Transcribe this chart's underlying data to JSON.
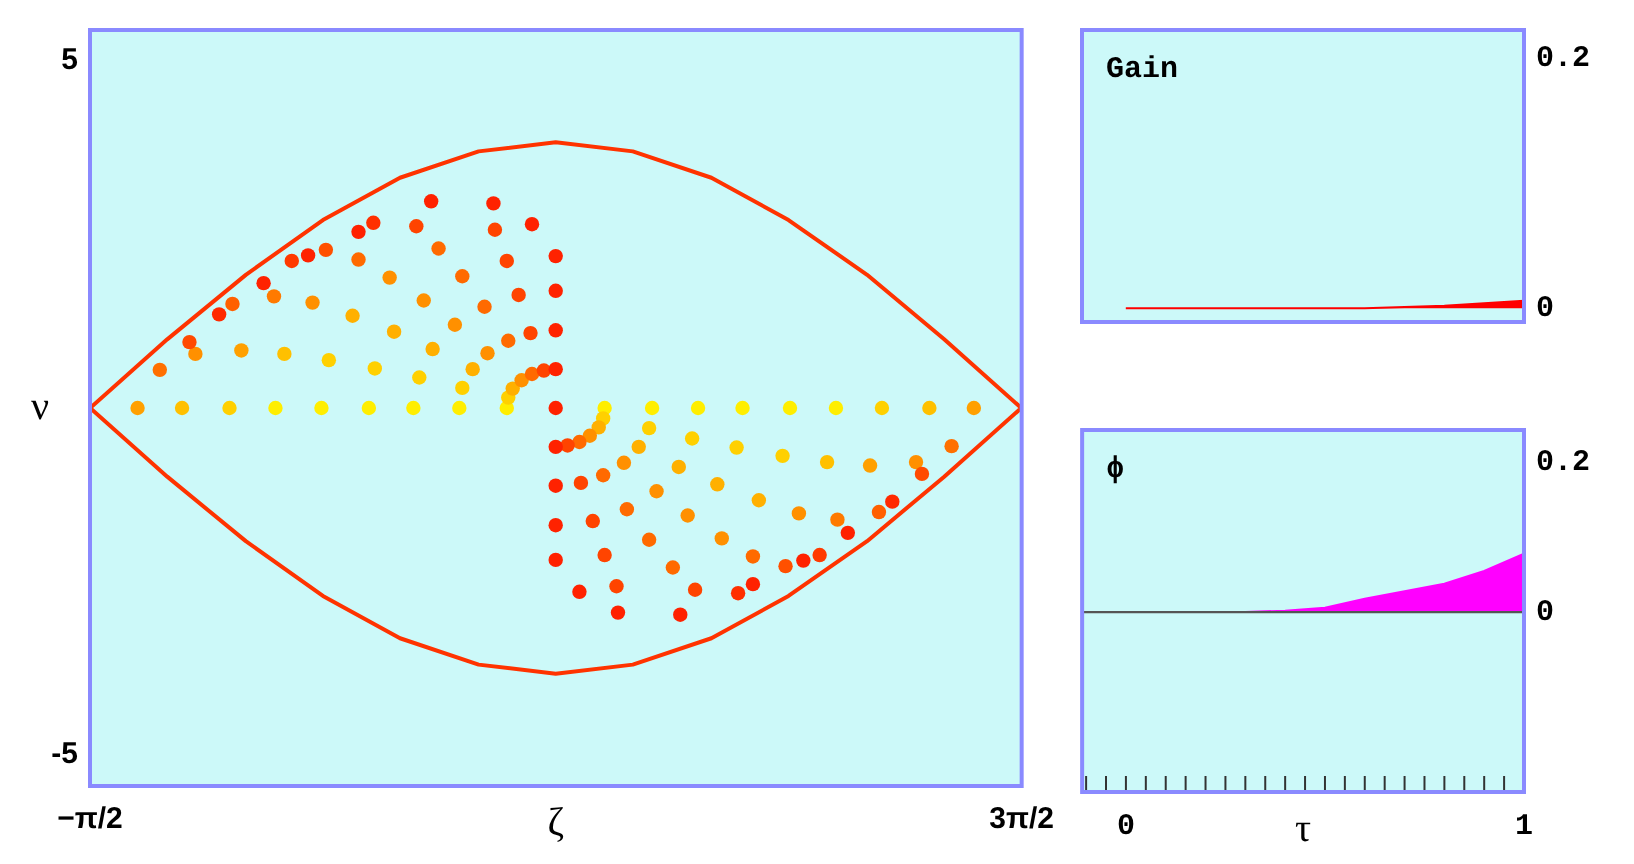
{
  "chart_data": [
    {
      "type": "scatter",
      "xlabel": "ζ",
      "ylabel": "ν",
      "xlim": [
        -1.5708,
        4.7124
      ],
      "xticks": [
        {
          "value": -1.5708,
          "label": "−π/2"
        },
        {
          "value": 4.7124,
          "label": "3π/2"
        }
      ],
      "ylim": [
        -5.45,
        5.45
      ],
      "yticks": [
        -5,
        5
      ],
      "series": [
        {
          "type": "line",
          "marker": "none",
          "color": "#ff3300",
          "x": [
            -1.57,
            -1.05,
            -0.52,
            0,
            0.52,
            1.05,
            1.57,
            2.09,
            2.62,
            3.14,
            3.67,
            4.19,
            4.71,
            null,
            -1.57,
            -1.05,
            -0.52,
            0,
            0.52,
            1.05,
            1.57,
            2.09,
            2.62,
            3.14,
            3.67,
            4.19,
            4.71
          ],
          "values": [
            0,
            0.99,
            1.92,
            2.71,
            3.32,
            3.7,
            3.83,
            3.7,
            3.32,
            2.71,
            1.92,
            0.99,
            0,
            null,
            0,
            -0.99,
            -1.92,
            -2.71,
            -3.32,
            -3.7,
            -3.83,
            -3.7,
            -3.32,
            -2.71,
            -1.92,
            -0.99,
            0
          ]
        },
        {
          "marker": "circle",
          "x": [
            1.24,
            1.25,
            1.28,
            1.34,
            1.41,
            1.49,
            1.57,
            0.92,
            0.94,
            1.01,
            1.11,
            1.25,
            1.4,
            1.57,
            0.61,
            0.65,
            0.74,
            0.89,
            1.09,
            1.32,
            1.57,
            0.31,
            0.35,
            0.48,
            0.68,
            0.94,
            1.24,
            1.57,
            -0.01,
            0.04,
            0.2,
            0.45,
            0.78,
            1.16,
            1.41,
            -0.32,
            -0.26,
            -0.07,
            0.24,
            0.63,
            1.15,
            -0.63,
            -0.55,
            -0.33,
            0.02,
            0.34,
            0.73,
            -0.95,
            -0.86,
            -0.61,
            -0.21,
            0.24,
            -1.25,
            -1.1,
            -0.9,
            -0.7,
            -0.4,
            -0.1,
            1.57
          ],
          "values": [
            0,
            0.15,
            0.28,
            0.4,
            0.49,
            0.54,
            0.56,
            0,
            0.29,
            0.56,
            0.79,
            0.97,
            1.08,
            1.12,
            0,
            0.44,
            0.85,
            1.2,
            1.46,
            1.63,
            1.69,
            0,
            0.57,
            1.1,
            1.55,
            1.9,
            2.12,
            2.19,
            0,
            0.69,
            1.33,
            1.88,
            2.3,
            2.57,
            2.65,
            0,
            0.78,
            1.52,
            2.14,
            2.62,
            2.95,
            0,
            0.83,
            1.61,
            2.28,
            2.67,
            2.98,
            0,
            0.78,
            1.5,
            2.12,
            2.54,
            0,
            0.55,
            0.95,
            1.35,
            1.8,
            2.2,
            0
          ],
          "colors": [
            "#ffee00",
            "#ffd000",
            "#ffb000",
            "#ff9000",
            "#ff6a00",
            "#ff4400",
            "#ff2200",
            "#ffee00",
            "#ffd000",
            "#ffb000",
            "#ff9000",
            "#ff6a00",
            "#ff4400",
            "#ff2200",
            "#ffee00",
            "#ffd000",
            "#ffb000",
            "#ff9000",
            "#ff6a00",
            "#ff4400",
            "#ff2200",
            "#ffee00",
            "#ffd000",
            "#ffb000",
            "#ff9000",
            "#ff6a00",
            "#ff4400",
            "#ff2200",
            "#ffee00",
            "#ffd000",
            "#ffb000",
            "#ff9000",
            "#ff6a00",
            "#ff4400",
            "#ff2200",
            "#ffee00",
            "#ffc000",
            "#ff9000",
            "#ff6a00",
            "#ff4400",
            "#ff2200",
            "#ffd000",
            "#ffa000",
            "#ff7a00",
            "#ff5000",
            "#ff3000",
            "#ff2200",
            "#ffc000",
            "#ff9000",
            "#ff6000",
            "#ff3a00",
            "#ff2200",
            "#ffa000",
            "#ff7000",
            "#ff4a00",
            "#ff2a00",
            "#ff2200",
            "#ff2200",
            "#ff2200"
          ]
        },
        {
          "marker": "circle",
          "x": [
            1.9,
            1.89,
            1.86,
            1.8,
            1.73,
            1.65,
            1.57,
            2.22,
            2.2,
            2.13,
            2.03,
            1.89,
            1.74,
            1.57,
            2.53,
            2.49,
            2.4,
            2.25,
            2.05,
            1.82,
            1.57,
            2.83,
            2.79,
            2.66,
            2.46,
            2.2,
            1.9,
            1.57,
            3.15,
            3.1,
            2.94,
            2.69,
            2.36,
            1.98,
            1.73,
            3.46,
            3.4,
            3.21,
            2.9,
            2.51,
            1.99,
            3.77,
            3.69,
            3.47,
            3.12,
            2.8,
            2.41,
            4.09,
            4.0,
            3.75,
            3.35,
            2.9,
            4.39,
            4.24,
            4.04,
            3.84,
            3.54,
            3.24
          ],
          "values": [
            0,
            -0.15,
            -0.28,
            -0.4,
            -0.49,
            -0.54,
            -0.56,
            0,
            -0.29,
            -0.56,
            -0.79,
            -0.97,
            -1.08,
            -1.12,
            0,
            -0.44,
            -0.85,
            -1.2,
            -1.46,
            -1.63,
            -1.69,
            0,
            -0.57,
            -1.1,
            -1.55,
            -1.9,
            -2.12,
            -2.19,
            0,
            -0.69,
            -1.33,
            -1.88,
            -2.3,
            -2.57,
            -2.65,
            0,
            -0.78,
            -1.52,
            -2.14,
            -2.62,
            -2.95,
            0,
            -0.83,
            -1.61,
            -2.28,
            -2.67,
            -2.98,
            0,
            -0.78,
            -1.5,
            -2.12,
            -2.54,
            0,
            -0.55,
            -0.95,
            -1.35,
            -1.8,
            -2.2
          ],
          "colors": [
            "#ffee00",
            "#ffd000",
            "#ffb000",
            "#ff9000",
            "#ff6a00",
            "#ff4400",
            "#ff2200",
            "#ffee00",
            "#ffd000",
            "#ffb000",
            "#ff9000",
            "#ff6a00",
            "#ff4400",
            "#ff2200",
            "#ffee00",
            "#ffd000",
            "#ffb000",
            "#ff9000",
            "#ff6a00",
            "#ff4400",
            "#ff2200",
            "#ffee00",
            "#ffd000",
            "#ffb000",
            "#ff9000",
            "#ff6a00",
            "#ff4400",
            "#ff2200",
            "#ffee00",
            "#ffd000",
            "#ffb000",
            "#ff9000",
            "#ff6a00",
            "#ff4400",
            "#ff2200",
            "#ffee00",
            "#ffc000",
            "#ff9000",
            "#ff6a00",
            "#ff4400",
            "#ff2200",
            "#ffd000",
            "#ffa000",
            "#ff7a00",
            "#ff5000",
            "#ff3000",
            "#ff2200",
            "#ffc000",
            "#ff9000",
            "#ff6000",
            "#ff3a00",
            "#ff2200",
            "#ffa000",
            "#ff7000",
            "#ff4a00",
            "#ff2a00",
            "#ff2200",
            "#ff2200"
          ]
        }
      ]
    },
    {
      "type": "area",
      "title": "Gain",
      "x": [
        0,
        0.5,
        0.6,
        0.7,
        0.8,
        0.9,
        1
      ],
      "values": [
        0,
        0,
        0,
        0.001,
        0.002,
        0.004,
        0.006
      ],
      "color": "#ff0000",
      "xlim": [
        -0.11,
        1
      ],
      "ylim": [
        -0.011,
        0.223
      ],
      "yticks": [
        0,
        0.2
      ],
      "tick_labels": "y"
    },
    {
      "type": "area",
      "title": "ϕ",
      "xlabel": "τ",
      "x": [
        0,
        0.3,
        0.4,
        0.5,
        0.6,
        0.7,
        0.8,
        0.9,
        1
      ],
      "values": [
        0,
        0,
        0.002,
        0.006,
        0.018,
        0.028,
        0.038,
        0.055,
        0.078
      ],
      "color": "#ff00ff",
      "xlim": [
        -0.11,
        1
      ],
      "xticks": [
        {
          "value": -0.1,
          "label": null
        },
        {
          "value": -0.05,
          "label": null
        },
        0,
        {
          "value": 0.05,
          "label": null
        },
        {
          "value": 0.1,
          "label": null
        },
        {
          "value": 0.15,
          "label": null
        },
        {
          "value": 0.2,
          "label": null
        },
        {
          "value": 0.25,
          "label": null
        },
        {
          "value": 0.3,
          "label": null
        },
        {
          "value": 0.35,
          "label": null
        },
        {
          "value": 0.4,
          "label": null
        },
        {
          "value": 0.45,
          "label": null
        },
        {
          "value": 0.5,
          "label": null
        },
        {
          "value": 0.55,
          "label": null
        },
        {
          "value": 0.6,
          "label": null
        },
        {
          "value": 0.65,
          "label": null
        },
        {
          "value": 0.7,
          "label": null
        },
        {
          "value": 0.75,
          "label": null
        },
        {
          "value": 0.8,
          "label": null
        },
        {
          "value": 0.85,
          "label": null
        },
        {
          "value": 0.9,
          "label": null
        },
        {
          "value": 0.95,
          "label": null
        },
        1
      ],
      "ylim": [
        -0.24,
        0.243
      ],
      "yticks": [
        0,
        0.2
      ],
      "ref_lines": [
        {
          "axis": "y",
          "value": 0,
          "color": "#555555"
        }
      ]
    }
  ]
}
